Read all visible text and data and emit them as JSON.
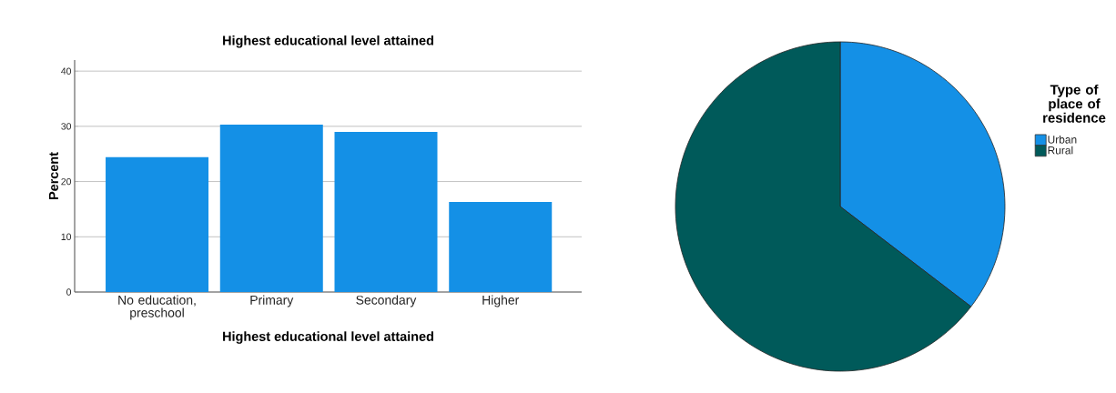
{
  "chart_data": [
    {
      "type": "bar",
      "title": "Highest educational level attained",
      "xlabel": "Highest educational level attained",
      "ylabel": "Percent",
      "categories": [
        "No education, preschool",
        "Primary",
        "Secondary",
        "Higher"
      ],
      "values": [
        24.4,
        30.3,
        29.0,
        16.3
      ],
      "color": "#1490e6",
      "ylim": [
        0,
        42
      ],
      "yticks": [
        0,
        10,
        20,
        30,
        40
      ],
      "grid": "y"
    },
    {
      "type": "pie",
      "legend_title": "Type of place of residence",
      "categories": [
        "Urban",
        "Rural"
      ],
      "values": [
        35.4,
        64.6
      ],
      "colors": [
        "#1490e6",
        "#005a5a"
      ],
      "legend": "right"
    }
  ]
}
